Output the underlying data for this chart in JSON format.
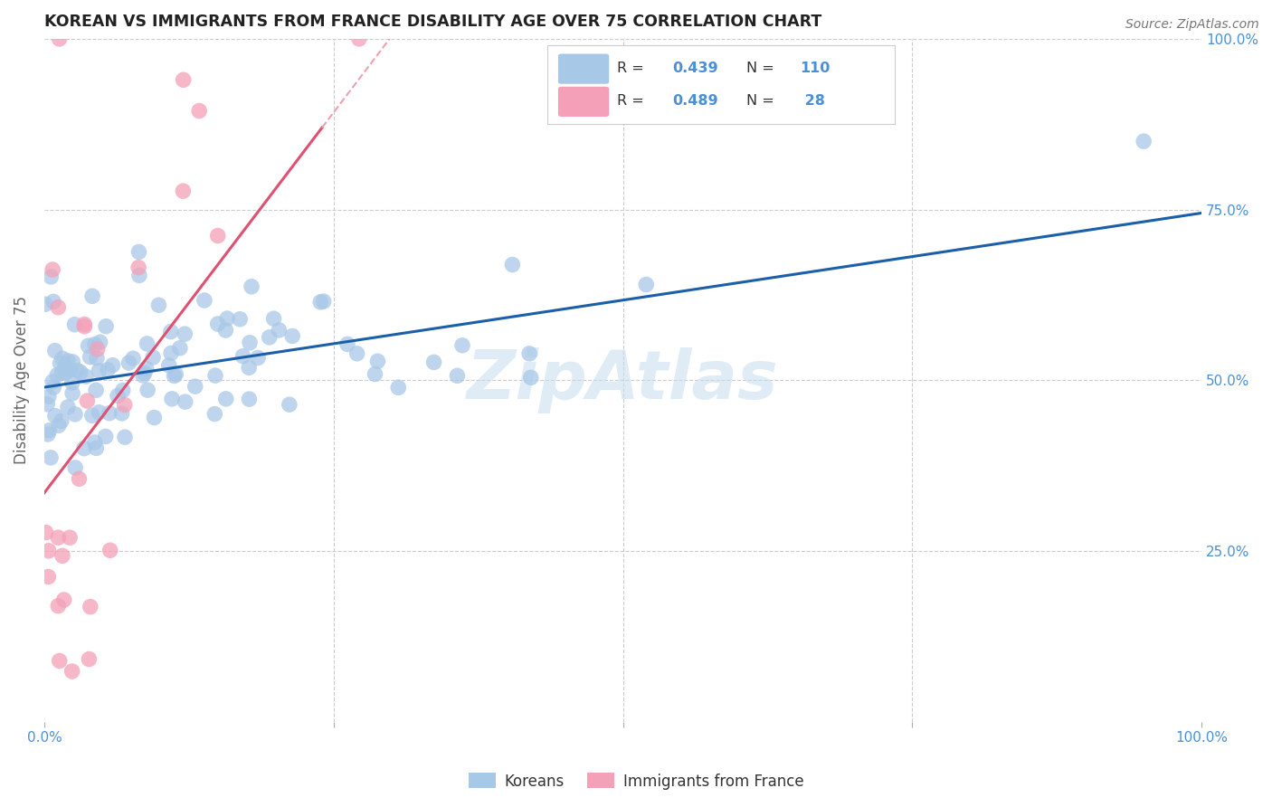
{
  "title": "KOREAN VS IMMIGRANTS FROM FRANCE DISABILITY AGE OVER 75 CORRELATION CHART",
  "source": "Source: ZipAtlas.com",
  "ylabel": "Disability Age Over 75",
  "xlim": [
    0,
    1
  ],
  "ylim": [
    0,
    1
  ],
  "legend_r1": "R = 0.439",
  "legend_n1": "N = 110",
  "legend_r2": "R = 0.489",
  "legend_n2": "N =  28",
  "legend_label1": "Koreans",
  "legend_label2": "Immigrants from France",
  "korean_color": "#a8c8e8",
  "france_color": "#f4a0b8",
  "korean_line_color": "#1a5fa8",
  "france_line_color": "#e05070",
  "france_line_dashed_color": "#f0a0b0",
  "watermark": "ZipAtlas",
  "background_color": "#ffffff",
  "right_axis_color": "#4a90d9",
  "bottom_axis_color": "#4a90d9",
  "axis_label_color": "#666666",
  "title_color": "#222222",
  "korean_seed": 42,
  "france_seed": 7
}
